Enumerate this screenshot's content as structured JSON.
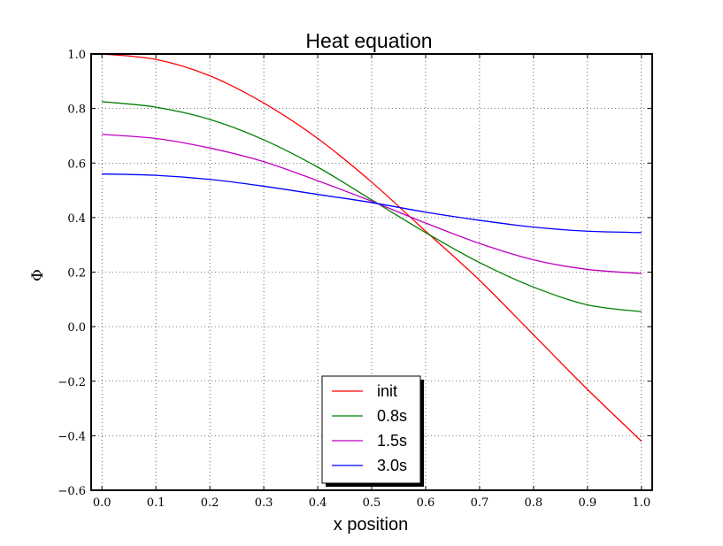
{
  "chart_data": {
    "type": "line",
    "title": "Heat equation",
    "xlabel": "x position",
    "ylabel": "Φ",
    "xlim": [
      -0.02,
      1.02
    ],
    "ylim": [
      -0.6,
      1.0
    ],
    "xticks": [
      0.0,
      0.1,
      0.2,
      0.3,
      0.4,
      0.5,
      0.6,
      0.7,
      0.8,
      0.9,
      1.0
    ],
    "xtick_labels": [
      "0.0",
      "0.1",
      "0.2",
      "0.3",
      "0.4",
      "0.5",
      "0.6",
      "0.7",
      "0.8",
      "0.9",
      "1.0"
    ],
    "yticks": [
      -0.6,
      -0.4,
      -0.2,
      0.0,
      0.2,
      0.4,
      0.6,
      0.8,
      1.0
    ],
    "ytick_labels": [
      "−0.6",
      "−0.4",
      "−0.2",
      "0.0",
      "0.2",
      "0.4",
      "0.6",
      "0.8",
      "1.0"
    ],
    "grid": true,
    "legend_position": "lower-center",
    "x": [
      0.0,
      0.1,
      0.2,
      0.3,
      0.4,
      0.5,
      0.6,
      0.7,
      0.8,
      0.9,
      1.0
    ],
    "series": [
      {
        "name": "init",
        "color": "#ff0000",
        "values": [
          1.0,
          0.98,
          0.92,
          0.82,
          0.69,
          0.53,
          0.35,
          0.17,
          -0.03,
          -0.23,
          -0.42
        ]
      },
      {
        "name": "0.8s",
        "color": "#008000",
        "values": [
          0.825,
          0.805,
          0.76,
          0.685,
          0.585,
          0.465,
          0.345,
          0.235,
          0.145,
          0.08,
          0.055
        ]
      },
      {
        "name": "1.5s",
        "color": "#bf00bf",
        "values": [
          0.705,
          0.69,
          0.655,
          0.605,
          0.535,
          0.46,
          0.38,
          0.305,
          0.245,
          0.21,
          0.195
        ]
      },
      {
        "name": "3.0s",
        "color": "#0000ff",
        "values": [
          0.56,
          0.555,
          0.54,
          0.515,
          0.485,
          0.455,
          0.42,
          0.39,
          0.365,
          0.35,
          0.345
        ]
      }
    ]
  }
}
